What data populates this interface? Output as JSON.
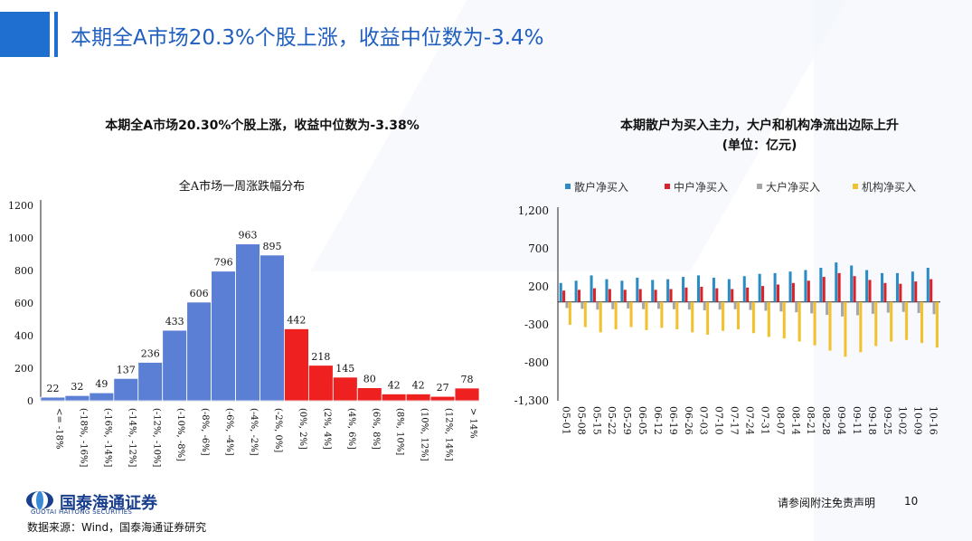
{
  "header": {
    "title": "本期全A市场20.3%个股上涨，收益中位数为-3.4%"
  },
  "left_panel": {
    "subtitle": "本期全A市场20.30%个股上涨，收益中位数为-3.38%"
  },
  "right_panel": {
    "subtitle_line1": "本期散户为买入主力，大户和机构净流出边际上升",
    "subtitle_line2": "(单位：亿元)"
  },
  "footer": {
    "logo_name": "国泰海通证券",
    "logo_english": "GUOTAI HAITONG SECURITIES",
    "source": "数据来源：Wind，国泰海通证券研究",
    "disclaimer": "请参阅附注免责声明",
    "page_number": "10"
  },
  "colors": {
    "accent": "#1f6fd0",
    "bar_up": "#5b7fd5",
    "bar_down": "#ee2020",
    "retail": "#2b8cc4",
    "mid": "#d9222a",
    "large": "#a6a6a6",
    "institution": "#f2c12e"
  },
  "chart_data": [
    {
      "type": "bar",
      "title": "全A市场一周涨跌幅分布",
      "categories": [
        "<= -18%",
        "(-18%, -16%]",
        "(-16%, -14%]",
        "(-14%, -12%]",
        "(-12%, -10%]",
        "(-10%, -8%]",
        "(-8%, -6%]",
        "(-6%, -4%]",
        "(-4%, -2%]",
        "(-2%, 0%]",
        "(0%, 2%]",
        "(2%, 4%]",
        "(4%, 6%]",
        "(6%, 8%]",
        "(8%, 10%]",
        "(10%, 12%]",
        "(12%, 14%]",
        "> 14%"
      ],
      "values": [
        22,
        32,
        49,
        137,
        236,
        433,
        606,
        796,
        963,
        895,
        442,
        218,
        145,
        80,
        42,
        42,
        27,
        78
      ],
      "yticks": [
        "0",
        "200",
        "400",
        "600",
        "800",
        "1000",
        "1200"
      ],
      "ylim": [
        0,
        1200
      ],
      "grid": false
    },
    {
      "type": "bar",
      "title": "",
      "legend": [
        "散户净买入",
        "中户净买入",
        "大户净买入",
        "机构净买入"
      ],
      "legend_position": "top",
      "x_labels": [
        "05-01",
        "05-08",
        "05-15",
        "05-22",
        "05-29",
        "06-05",
        "06-12",
        "06-19",
        "06-26",
        "07-03",
        "07-10",
        "07-17",
        "07-24",
        "07-31",
        "08-07",
        "08-14",
        "08-21",
        "08-28",
        "09-04",
        "09-11",
        "09-18",
        "09-25",
        "10-02",
        "10-09",
        "10-16"
      ],
      "yticks": [
        "1,200",
        "700",
        "200",
        "-300",
        "-800",
        "-1,300"
      ],
      "ylim": [
        -1300,
        1200
      ],
      "grid": false,
      "series": [
        {
          "name": "散户净买入",
          "values": [
            250,
            280,
            350,
            300,
            280,
            320,
            290,
            300,
            330,
            350,
            320,
            300,
            340,
            370,
            380,
            400,
            420,
            450,
            520,
            480,
            420,
            380,
            380,
            400,
            450
          ]
        },
        {
          "name": "中户净买入",
          "values": [
            150,
            160,
            180,
            170,
            160,
            170,
            160,
            170,
            190,
            200,
            180,
            170,
            190,
            210,
            230,
            250,
            280,
            330,
            380,
            340,
            290,
            250,
            240,
            270,
            300
          ]
        },
        {
          "name": "大户净买入",
          "values": [
            -80,
            -90,
            -100,
            -95,
            -85,
            -95,
            -90,
            -95,
            -100,
            -110,
            -100,
            -95,
            -105,
            -115,
            -125,
            -135,
            -150,
            -170,
            -190,
            -175,
            -155,
            -140,
            -130,
            -145,
            -160
          ]
        },
        {
          "name": "机构净买入",
          "values": [
            -300,
            -330,
            -400,
            -360,
            -330,
            -370,
            -340,
            -360,
            -400,
            -430,
            -380,
            -360,
            -410,
            -460,
            -480,
            -520,
            -570,
            -640,
            -720,
            -660,
            -580,
            -520,
            -500,
            -540,
            -600
          ]
        }
      ]
    }
  ]
}
